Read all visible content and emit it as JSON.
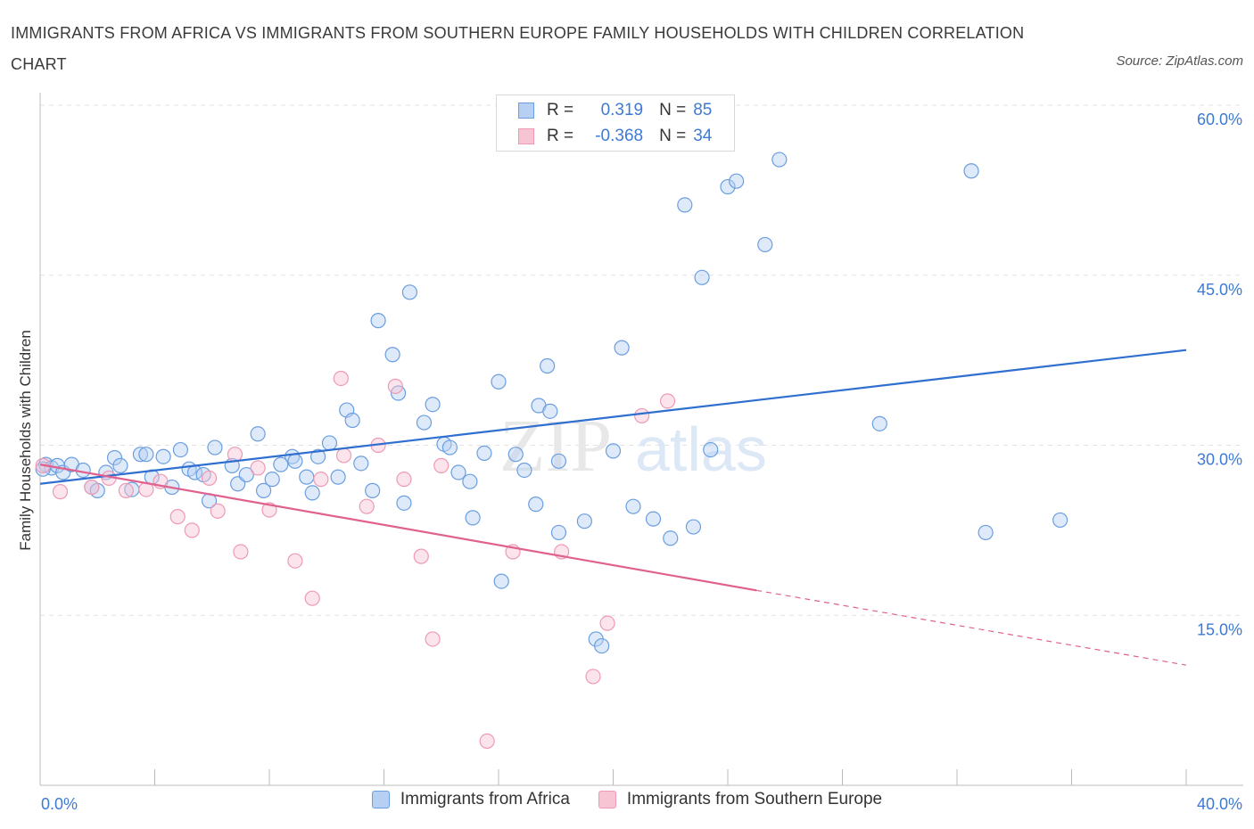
{
  "title": "IMMIGRANTS FROM AFRICA VS IMMIGRANTS FROM SOUTHERN EUROPE FAMILY HOUSEHOLDS WITH CHILDREN CORRELATION CHART",
  "source": "Source: ZipAtlas.com",
  "watermark": {
    "zip": "ZIP",
    "atlas": "atlas"
  },
  "legend_top": [
    {
      "r_label": "R =",
      "r_value": "0.319",
      "n_label": "N =",
      "n_value": "85"
    },
    {
      "r_label": "R =",
      "r_value": "-0.368",
      "n_label": "N =",
      "n_value": "34"
    }
  ],
  "legend_bottom": [
    "Immigrants from Africa",
    "Immigrants from Southern Europe"
  ],
  "chart_data": {
    "type": "scatter",
    "title": "IMMIGRANTS FROM AFRICA VS IMMIGRANTS FROM SOUTHERN EUROPE FAMILY HOUSEHOLDS WITH CHILDREN CORRELATION CHART",
    "xlabel": "",
    "ylabel": "Family Households with Children",
    "xlim": [
      0,
      40
    ],
    "ylim": [
      0,
      60
    ],
    "x_tick_labels": [
      "0.0%",
      "40.0%"
    ],
    "y_tick_values": [
      15,
      30,
      45,
      60
    ],
    "y_tick_labels": [
      "15.0%",
      "30.0%",
      "45.0%",
      "60.0%"
    ],
    "grid": true,
    "colors": {
      "africa": "#6a9ee0",
      "africa_fill": "#b5d0f3",
      "africa_line": "#2f6fd0",
      "europe": "#ee9ab5",
      "europe_fill": "#f6c4d3",
      "europe_line": "#e0608e",
      "axis_text": "#3d7ad6"
    },
    "series": [
      {
        "name": "Immigrants from Africa",
        "r": 0.319,
        "n": 85,
        "trend": {
          "x": [
            0,
            40
          ],
          "y": [
            26.6,
            38.4
          ]
        },
        "points": [
          [
            0.2,
            28.3
          ],
          [
            0.4,
            28.0
          ],
          [
            0.6,
            28.2
          ],
          [
            0.8,
            27.6
          ],
          [
            1.1,
            28.3
          ],
          [
            1.5,
            27.8
          ],
          [
            1.8,
            26.3
          ],
          [
            2.0,
            26.0
          ],
          [
            2.3,
            27.6
          ],
          [
            2.6,
            28.9
          ],
          [
            2.8,
            28.2
          ],
          [
            3.2,
            26.1
          ],
          [
            3.5,
            29.2
          ],
          [
            3.7,
            29.2
          ],
          [
            3.9,
            27.2
          ],
          [
            4.3,
            29.0
          ],
          [
            4.6,
            26.3
          ],
          [
            4.9,
            29.6
          ],
          [
            5.2,
            27.9
          ],
          [
            5.4,
            27.6
          ],
          [
            5.7,
            27.4
          ],
          [
            5.9,
            25.1
          ],
          [
            6.1,
            29.8
          ],
          [
            6.7,
            28.2
          ],
          [
            6.9,
            26.6
          ],
          [
            7.2,
            27.4
          ],
          [
            7.6,
            31.0
          ],
          [
            7.8,
            26.0
          ],
          [
            8.1,
            27.0
          ],
          [
            8.4,
            28.3
          ],
          [
            8.8,
            29.0
          ],
          [
            8.9,
            28.6
          ],
          [
            9.3,
            27.2
          ],
          [
            9.5,
            25.8
          ],
          [
            9.7,
            29.0
          ],
          [
            10.1,
            30.2
          ],
          [
            10.4,
            27.2
          ],
          [
            10.7,
            33.1
          ],
          [
            10.9,
            32.2
          ],
          [
            11.2,
            28.4
          ],
          [
            11.6,
            26.0
          ],
          [
            11.8,
            41.0
          ],
          [
            12.3,
            38.0
          ],
          [
            12.5,
            34.6
          ],
          [
            12.7,
            24.9
          ],
          [
            12.9,
            43.5
          ],
          [
            13.4,
            32.0
          ],
          [
            13.7,
            33.6
          ],
          [
            14.1,
            30.1
          ],
          [
            14.3,
            29.8
          ],
          [
            14.6,
            27.6
          ],
          [
            15.0,
            26.8
          ],
          [
            15.1,
            23.6
          ],
          [
            15.5,
            29.3
          ],
          [
            16.0,
            35.6
          ],
          [
            16.1,
            18.0
          ],
          [
            16.6,
            29.2
          ],
          [
            16.9,
            27.8
          ],
          [
            17.3,
            24.8
          ],
          [
            17.4,
            33.5
          ],
          [
            17.7,
            37.0
          ],
          [
            17.8,
            33.0
          ],
          [
            18.1,
            22.3
          ],
          [
            18.1,
            28.6
          ],
          [
            19.0,
            23.3
          ],
          [
            19.4,
            12.9
          ],
          [
            19.6,
            12.3
          ],
          [
            20.0,
            29.5
          ],
          [
            20.3,
            38.6
          ],
          [
            20.7,
            24.6
          ],
          [
            21.4,
            23.5
          ],
          [
            22.0,
            21.8
          ],
          [
            22.5,
            51.2
          ],
          [
            22.8,
            22.8
          ],
          [
            23.1,
            44.8
          ],
          [
            23.4,
            29.6
          ],
          [
            24.0,
            52.8
          ],
          [
            24.3,
            53.3
          ],
          [
            25.3,
            47.7
          ],
          [
            25.8,
            55.2
          ],
          [
            29.3,
            31.9
          ],
          [
            32.5,
            54.2
          ],
          [
            33.0,
            22.3
          ],
          [
            35.6,
            23.4
          ],
          [
            0.1,
            27.9
          ]
        ]
      },
      {
        "name": "Immigrants from Southern Europe",
        "r": -0.368,
        "n": 34,
        "trend": {
          "x": [
            0,
            25
          ],
          "y": [
            28.3,
            17.2
          ]
        },
        "trend_dashed": {
          "x": [
            25,
            40
          ],
          "y": [
            17.2,
            10.6
          ]
        },
        "points": [
          [
            0.1,
            28.2
          ],
          [
            0.7,
            25.9
          ],
          [
            1.8,
            26.3
          ],
          [
            2.4,
            27.1
          ],
          [
            3.0,
            26.0
          ],
          [
            3.7,
            26.1
          ],
          [
            4.2,
            26.8
          ],
          [
            4.8,
            23.7
          ],
          [
            5.3,
            22.5
          ],
          [
            5.9,
            27.1
          ],
          [
            6.2,
            24.2
          ],
          [
            6.8,
            29.2
          ],
          [
            7.0,
            20.6
          ],
          [
            7.6,
            28.0
          ],
          [
            8.0,
            24.3
          ],
          [
            8.9,
            19.8
          ],
          [
            9.5,
            16.5
          ],
          [
            9.8,
            27.0
          ],
          [
            10.5,
            35.9
          ],
          [
            10.6,
            29.1
          ],
          [
            11.4,
            24.6
          ],
          [
            11.8,
            30.0
          ],
          [
            12.4,
            35.2
          ],
          [
            12.7,
            27.0
          ],
          [
            13.3,
            20.2
          ],
          [
            13.7,
            12.9
          ],
          [
            14.0,
            28.2
          ],
          [
            15.6,
            3.9
          ],
          [
            16.5,
            20.6
          ],
          [
            18.2,
            20.6
          ],
          [
            19.3,
            9.6
          ],
          [
            19.8,
            14.3
          ],
          [
            21.0,
            32.6
          ],
          [
            21.9,
            33.9
          ]
        ]
      }
    ]
  }
}
